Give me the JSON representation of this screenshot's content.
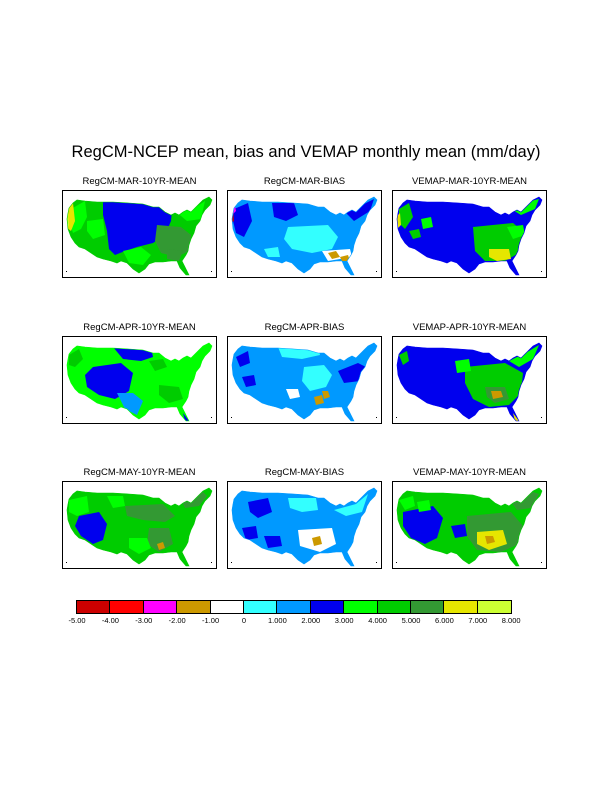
{
  "title": "RegCM-NCEP mean, bias and VEMAP monthly mean (mm/day)",
  "panels": [
    {
      "title": "RegCM-MAR-10YR-MEAN",
      "kind": "regmean",
      "month": "MAR"
    },
    {
      "title": "RegCM-MAR-BIAS",
      "kind": "bias",
      "month": "MAR"
    },
    {
      "title": "VEMAP-MAR-10YR-MEAN",
      "kind": "vemap",
      "month": "MAR"
    },
    {
      "title": "RegCM-APR-10YR-MEAN",
      "kind": "regmean",
      "month": "APR"
    },
    {
      "title": "RegCM-APR-BIAS",
      "kind": "bias",
      "month": "APR"
    },
    {
      "title": "VEMAP-APR-10YR-MEAN",
      "kind": "vemap",
      "month": "APR"
    },
    {
      "title": "RegCM-MAY-10YR-MEAN",
      "kind": "regmean",
      "month": "MAY"
    },
    {
      "title": "RegCM-MAY-BIAS",
      "kind": "bias",
      "month": "MAY"
    },
    {
      "title": "VEMAP-MAY-10YR-MEAN",
      "kind": "vemap",
      "month": "MAY"
    }
  ],
  "colorbar": {
    "colors": [
      "#cc0000",
      "#ff0000",
      "#ff00ff",
      "#cc9900",
      "#ffffff",
      "#33ffff",
      "#0099ff",
      "#0000ee",
      "#00ff00",
      "#00cc00",
      "#339933",
      "#e6e600",
      "#ccff33"
    ],
    "labels": [
      "-5.00",
      "-4.00",
      "-3.00",
      "-2.00",
      "-1.00",
      "0",
      "1.000",
      "2.000",
      "3.000",
      "4.000",
      "5.000",
      "6.000",
      "7.000",
      "8.000"
    ]
  }
}
